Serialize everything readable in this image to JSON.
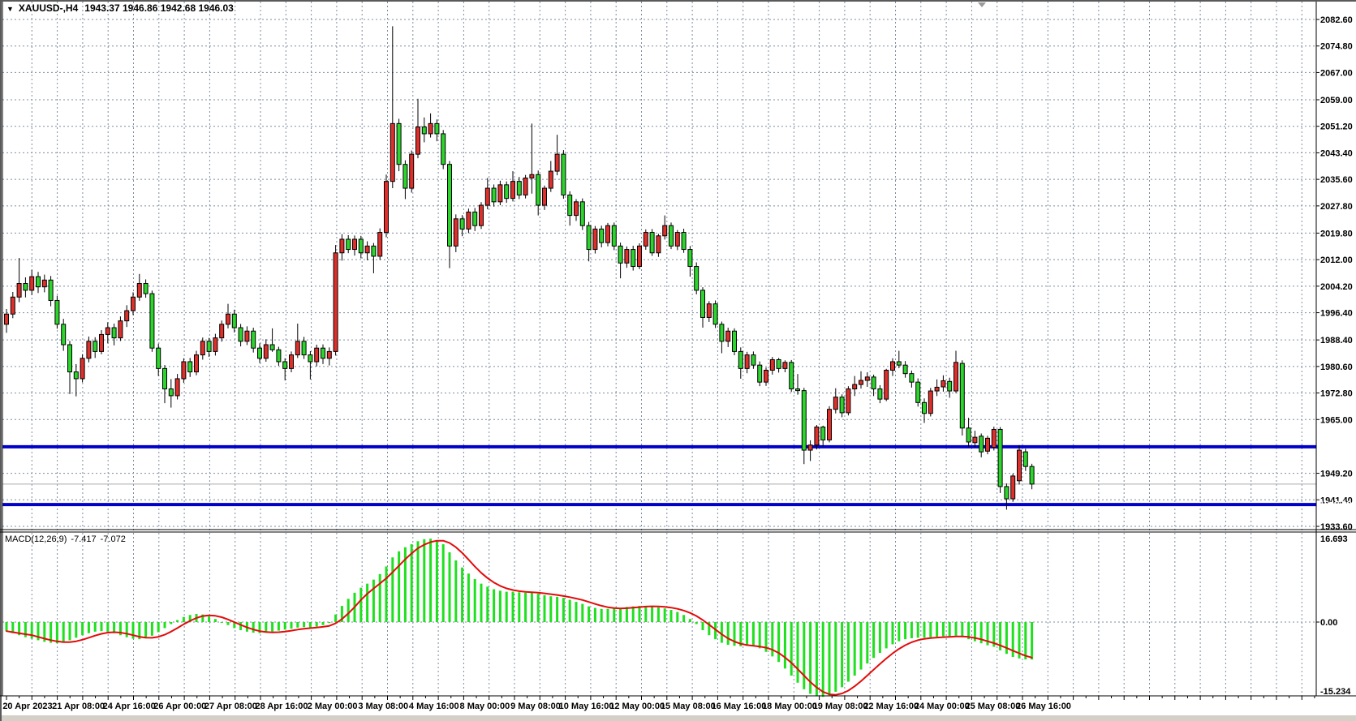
{
  "header": {
    "expander_icon": "▼",
    "symbol_period": "XAUUSD-,H4",
    "quote": {
      "open": "1943.37",
      "high": "1946.86",
      "low": "1942.68",
      "close": "1946.03"
    }
  },
  "colors": {
    "background": "#FFFFFF",
    "chrome": "#D4D0C8",
    "grid": "#7E8CA0",
    "bull_candle": "#DF2F2B",
    "bear_candle": "#2BD52B",
    "candle_outline": "#000000",
    "level_line_blue": "#0000C8",
    "current_price_line": "#AAAAAA",
    "current_price_badge_bg": "#000000",
    "macd_histogram": "#1FE01F",
    "macd_signal": "#E30B0B",
    "axis_text": "#000000"
  },
  "chart_data": {
    "type": "candlestick",
    "symbol": "XAUUSD-",
    "timeframe": "H4",
    "indicator": "MACD",
    "price_axis": {
      "ticks": [
        "2082.60",
        "2074.80",
        "2067.00",
        "2059.00",
        "2051.20",
        "2043.40",
        "2035.60",
        "2027.80",
        "2019.80",
        "2012.00",
        "2004.20",
        "1996.40",
        "1988.40",
        "1980.60",
        "1972.80",
        "1965.00",
        "1949.20",
        "1941.40",
        "1933.60"
      ]
    },
    "time_axis": {
      "labels": [
        "20 Apr 2023",
        "21 Apr 08:00",
        "24 Apr 16:00",
        "26 Apr 00:00",
        "27 Apr 08:00",
        "28 Apr 16:00",
        "2 May 00:00",
        "3 May 08:00",
        "4 May 16:00",
        "8 May 00:00",
        "9 May 08:00",
        "10 May 16:00",
        "12 May 00:00",
        "15 May 08:00",
        "16 May 16:00",
        "18 May 00:00",
        "19 May 08:00",
        "22 May 16:00",
        "24 May 00:00",
        "25 May 08:00",
        "26 May 16:00"
      ]
    },
    "horizontal_lines": [
      {
        "label": "1957.00",
        "value": 1957.0,
        "color": "#0000C8"
      },
      {
        "label": "1940.00",
        "value": 1940.0,
        "color": "#0000C8"
      }
    ],
    "current_price": {
      "label": "1946.03",
      "value": 1946.03
    },
    "candles": [
      [
        1993,
        1997.5,
        1990.5,
        1996
      ],
      [
        1996,
        2002.5,
        1994.8,
        2001
      ],
      [
        2001,
        2012.5,
        1999.5,
        2005
      ],
      [
        2005,
        2006.8,
        2000.9,
        2003
      ],
      [
        2003,
        2009,
        2001.6,
        2007
      ],
      [
        2007,
        2008.4,
        2002.2,
        2004
      ],
      [
        2004,
        2007.6,
        2002.4,
        2006
      ],
      [
        2006,
        2007.2,
        1998.3,
        2000
      ],
      [
        2000,
        2001.4,
        1991.7,
        1993
      ],
      [
        1993,
        1994.6,
        1985.2,
        1987
      ],
      [
        1987,
        1988.1,
        1972.5,
        1979
      ],
      [
        1979,
        1981.3,
        1971.8,
        1977
      ],
      [
        1977,
        1984.2,
        1975.9,
        1983
      ],
      [
        1983,
        1989.4,
        1981.8,
        1988
      ],
      [
        1988,
        1989.2,
        1983.1,
        1985
      ],
      [
        1985,
        1991.3,
        1984.2,
        1990
      ],
      [
        1990,
        1993.6,
        1987.4,
        1992
      ],
      [
        1992,
        1993.2,
        1986.8,
        1989
      ],
      [
        1989,
        1995.3,
        1988.1,
        1994
      ],
      [
        1994,
        1998.6,
        1992.2,
        1997
      ],
      [
        1997,
        2002.4,
        1995.7,
        2001
      ],
      [
        2001,
        2007.8,
        1999.9,
        2005
      ],
      [
        2005,
        2006.2,
        2000.8,
        2002
      ],
      [
        2002,
        2002.9,
        1984.9,
        1986
      ],
      [
        1986,
        1987.3,
        1977.8,
        1980
      ],
      [
        1980,
        1981,
        1969.8,
        1974
      ],
      [
        1974,
        1976.9,
        1968.5,
        1972
      ],
      [
        1972,
        1978.4,
        1970.9,
        1977
      ],
      [
        1977,
        1983,
        1975.8,
        1982
      ],
      [
        1982,
        1983.1,
        1977.5,
        1979
      ],
      [
        1979,
        1985.2,
        1978,
        1984
      ],
      [
        1984,
        1989.1,
        1982.6,
        1988
      ],
      [
        1988,
        1989,
        1983.4,
        1985
      ],
      [
        1985,
        1990.2,
        1983.8,
        1989
      ],
      [
        1989,
        1994.1,
        1987.9,
        1993
      ],
      [
        1993,
        1999,
        1991.8,
        1996
      ],
      [
        1996,
        1997.3,
        1990.6,
        1992
      ],
      [
        1992,
        1993.1,
        1986.5,
        1988
      ],
      [
        1988,
        1992.4,
        1986.9,
        1991
      ],
      [
        1991,
        1992,
        1984.7,
        1986
      ],
      [
        1986,
        1987.4,
        1981.6,
        1983
      ],
      [
        1983,
        1988.6,
        1982,
        1987
      ],
      [
        1987,
        1991.8,
        1984.9,
        1985.5
      ],
      [
        1985.5,
        1986.4,
        1980.8,
        1982
      ],
      [
        1982,
        1983,
        1976.5,
        1980
      ],
      [
        1980,
        1985,
        1978.9,
        1984
      ],
      [
        1984,
        1993.2,
        1983.1,
        1988
      ],
      [
        1988,
        1989.3,
        1982.8,
        1984
      ],
      [
        1984,
        1985.1,
        1976.8,
        1982
      ],
      [
        1982,
        1987,
        1980.6,
        1986
      ],
      [
        1986,
        1987.1,
        1981.3,
        1983
      ],
      [
        1983,
        1986.2,
        1980.9,
        1985
      ],
      [
        1985,
        2016.3,
        1983.8,
        2014
      ],
      [
        2014,
        2019.5,
        2011.7,
        2018
      ],
      [
        2018,
        2019.2,
        2013.9,
        2015
      ],
      [
        2015,
        2019.1,
        2013.2,
        2018
      ],
      [
        2018,
        2019,
        2012.4,
        2014
      ],
      [
        2014,
        2017.4,
        2011.8,
        2016
      ],
      [
        2016,
        2016.9,
        2008,
        2013
      ],
      [
        2013,
        2021.2,
        2011.9,
        2020
      ],
      [
        2020,
        2037,
        2018.6,
        2035
      ],
      [
        2035,
        2080.6,
        2033,
        2052
      ],
      [
        2052,
        2053.4,
        2038,
        2040
      ],
      [
        2040,
        2041.2,
        2029.8,
        2033
      ],
      [
        2033,
        2044.1,
        2031.7,
        2043
      ],
      [
        2043,
        2059.3,
        2041.8,
        2051
      ],
      [
        2051,
        2053.8,
        2046.5,
        2049
      ],
      [
        2049,
        2055,
        2047.9,
        2052
      ],
      [
        2052,
        2053.2,
        2046.8,
        2049
      ],
      [
        2049,
        2050.1,
        2038.6,
        2040
      ],
      [
        2040,
        2041,
        2009.5,
        2016
      ],
      [
        2016,
        2025.3,
        2014.2,
        2024
      ],
      [
        2024,
        2025.1,
        2018.9,
        2021
      ],
      [
        2021,
        2027,
        2019.8,
        2026
      ],
      [
        2026,
        2027.2,
        2020.4,
        2022
      ],
      [
        2022,
        2028.9,
        2021,
        2028
      ],
      [
        2028,
        2036,
        2026.8,
        2033
      ],
      [
        2033,
        2034.1,
        2027.6,
        2029
      ],
      [
        2029,
        2035.2,
        2028,
        2034
      ],
      [
        2034,
        2035,
        2028.7,
        2030
      ],
      [
        2030,
        2038,
        2029.1,
        2035
      ],
      [
        2035,
        2036.3,
        2029.8,
        2031
      ],
      [
        2031,
        2036.9,
        2030,
        2036
      ],
      [
        2036,
        2052,
        2031.4,
        2037
      ],
      [
        2037,
        2038.2,
        2025,
        2028
      ],
      [
        2028,
        2033.8,
        2026.6,
        2033
      ],
      [
        2033,
        2041,
        2031.9,
        2038
      ],
      [
        2038,
        2048.7,
        2036.8,
        2043
      ],
      [
        2043,
        2044.2,
        2029.9,
        2031
      ],
      [
        2031,
        2032.1,
        2022,
        2025
      ],
      [
        2025,
        2029.8,
        2023.4,
        2029
      ],
      [
        2029,
        2030,
        2020.7,
        2022
      ],
      [
        2022,
        2023.1,
        2011.5,
        2015
      ],
      [
        2015,
        2021.9,
        2013.8,
        2021
      ],
      [
        2021,
        2022,
        2015.6,
        2017
      ],
      [
        2017,
        2022.8,
        2015.9,
        2022
      ],
      [
        2022,
        2022.9,
        2014.8,
        2016
      ],
      [
        2016,
        2017,
        2006.5,
        2011
      ],
      [
        2011,
        2015.9,
        2009.6,
        2015
      ],
      [
        2015,
        2016.1,
        2008.8,
        2010
      ],
      [
        2010,
        2016.8,
        2009.2,
        2016
      ],
      [
        2016,
        2020.9,
        2014.9,
        2020
      ],
      [
        2020,
        2021,
        2013.1,
        2014
      ],
      [
        2014,
        2019.6,
        2012.8,
        2019
      ],
      [
        2019,
        2025,
        2017.9,
        2022
      ],
      [
        2022,
        2022.9,
        2015.1,
        2016
      ],
      [
        2016,
        2020.7,
        2014.8,
        2020
      ],
      [
        2020,
        2021.1,
        2014,
        2015
      ],
      [
        2015,
        2016,
        2007,
        2010
      ],
      [
        2010,
        2011.2,
        2001.8,
        2003
      ],
      [
        2003,
        2003.9,
        1992,
        1995
      ],
      [
        1995,
        1999.8,
        1993.7,
        1999
      ],
      [
        1999,
        2000,
        1991.9,
        1993
      ],
      [
        1993,
        1993.8,
        1984.5,
        1988
      ],
      [
        1988,
        1992,
        1986.3,
        1991
      ],
      [
        1991,
        1991.8,
        1983.9,
        1985
      ],
      [
        1985,
        1986.2,
        1977,
        1980
      ],
      [
        1980,
        1984.9,
        1978.6,
        1984
      ],
      [
        1984,
        1985,
        1979.9,
        1981
      ],
      [
        1981,
        1982.1,
        1974.8,
        1976
      ],
      [
        1976,
        1980.3,
        1974.9,
        1979.5
      ],
      [
        1979.5,
        1983.4,
        1978.2,
        1982.6
      ],
      [
        1982.6,
        1983.1,
        1978.8,
        1980
      ],
      [
        1980,
        1982.4,
        1978.9,
        1981.8
      ],
      [
        1981.8,
        1982.5,
        1973.1,
        1974
      ],
      [
        1974,
        1978.4,
        1972.3,
        1973.5
      ],
      [
        1973.5,
        1974.3,
        1951.9,
        1956
      ],
      [
        1956,
        1958.9,
        1952.8,
        1957.5
      ],
      [
        1957.5,
        1963.4,
        1956.2,
        1962.8
      ],
      [
        1962.8,
        1963.2,
        1957.1,
        1959
      ],
      [
        1959,
        1968.9,
        1958.3,
        1968
      ],
      [
        1968,
        1974.2,
        1966.8,
        1971.6
      ],
      [
        1971.6,
        1972.4,
        1965.7,
        1967
      ],
      [
        1967,
        1974.8,
        1966.2,
        1974
      ],
      [
        1974,
        1977.8,
        1971.9,
        1975.3
      ],
      [
        1975.3,
        1979.2,
        1974.1,
        1976.5
      ],
      [
        1976.5,
        1978.9,
        1974.6,
        1977.5
      ],
      [
        1977.5,
        1978.2,
        1971.9,
        1974
      ],
      [
        1974,
        1975.1,
        1969.8,
        1971
      ],
      [
        1971,
        1979.9,
        1970.4,
        1979.5
      ],
      [
        1979.5,
        1983,
        1977.8,
        1982
      ],
      [
        1982,
        1985.2,
        1980.1,
        1981
      ],
      [
        1981,
        1982.2,
        1977.3,
        1978.5
      ],
      [
        1978.5,
        1979.4,
        1974.4,
        1976
      ],
      [
        1976,
        1977.1,
        1968.8,
        1970
      ],
      [
        1970,
        1971.2,
        1964,
        1966.8
      ],
      [
        1966.8,
        1974.3,
        1965.9,
        1973.4
      ],
      [
        1973.4,
        1976.8,
        1971.9,
        1974.5
      ],
      [
        1974.6,
        1978,
        1973.2,
        1976.4
      ],
      [
        1976.2,
        1977.3,
        1971.4,
        1973.4
      ],
      [
        1973.4,
        1985.2,
        1972.8,
        1981.8
      ],
      [
        1981.5,
        1982.4,
        1960.3,
        1962.5
      ],
      [
        1962.5,
        1965.5,
        1956.9,
        1958.4
      ],
      [
        1958.2,
        1961.7,
        1956.8,
        1959.8
      ],
      [
        1960.1,
        1960.9,
        1953.9,
        1955.5
      ],
      [
        1955.7,
        1960.2,
        1954.8,
        1959.5
      ],
      [
        1956.8,
        1962.9,
        1955.9,
        1962.1
      ],
      [
        1962.1,
        1962.8,
        1943.4,
        1945.3
      ],
      [
        1945.3,
        1946.2,
        1938.5,
        1941.7
      ],
      [
        1941.7,
        1949.1,
        1940.8,
        1948.4
      ],
      [
        1947,
        1957.5,
        1945.9,
        1956
      ],
      [
        1955.5,
        1956.4,
        1949.9,
        1951.2
      ],
      [
        1951.2,
        1952,
        1944.5,
        1946.03
      ]
    ],
    "macd": {
      "label": "MACD(12,26,9)",
      "main_value": "-7.417",
      "signal_value": "-7.072",
      "signal_period": 9,
      "axis": {
        "max": "16.693",
        "zero": "0.00",
        "min": "-15.234"
      },
      "histogram": [
        -1.8,
        -2.2,
        -2.6,
        -3.0,
        -3.3,
        -3.6,
        -3.9,
        -4.1,
        -4.2,
        -4.0,
        -3.6,
        -3.1,
        -2.6,
        -2.2,
        -1.9,
        -1.8,
        -1.9,
        -2.2,
        -2.6,
        -3.0,
        -3.3,
        -3.4,
        -3.2,
        -2.7,
        -2.0,
        -1.2,
        -0.4,
        0.4,
        1.0,
        1.4,
        1.6,
        1.5,
        1.1,
        0.6,
        0.0,
        -0.6,
        -1.2,
        -1.6,
        -1.9,
        -2.1,
        -2.2,
        -2.1,
        -1.9,
        -1.7,
        -1.5,
        -1.3,
        -1.1,
        -1.0,
        -1.1,
        -0.9,
        -0.6,
        -0.2,
        1.5,
        3.2,
        4.6,
        5.8,
        6.8,
        7.6,
        8.4,
        9.5,
        11.0,
        12.8,
        14.0,
        14.8,
        15.4,
        16.0,
        16.4,
        16.5,
        16.2,
        15.4,
        13.8,
        12.2,
        10.8,
        9.6,
        8.5,
        7.6,
        7.0,
        6.5,
        6.2,
        6.0,
        6.0,
        5.9,
        5.8,
        5.8,
        5.6,
        5.3,
        5.1,
        5.0,
        4.8,
        4.4,
        4.0,
        3.6,
        3.1,
        2.8,
        2.6,
        2.6,
        2.7,
        2.8,
        3.0,
        3.1,
        3.2,
        3.2,
        3.1,
        2.9,
        2.7,
        2.4,
        2.0,
        1.4,
        0.6,
        -0.4,
        -1.6,
        -2.6,
        -3.4,
        -4.1,
        -4.5,
        -4.7,
        -4.8,
        -4.7,
        -4.8,
        -5.2,
        -5.9,
        -6.8,
        -7.9,
        -9.2,
        -10.6,
        -12.0,
        -13.3,
        -14.2,
        -14.7,
        -14.8,
        -14.5,
        -13.8,
        -12.9,
        -11.8,
        -10.6,
        -9.4,
        -8.2,
        -7.1,
        -6.1,
        -5.2,
        -4.4,
        -3.8,
        -3.4,
        -3.2,
        -3.1,
        -3.1,
        -3.0,
        -2.9,
        -2.8,
        -2.8,
        -2.7,
        -3.0,
        -3.4,
        -3.8,
        -4.2,
        -4.6,
        -4.9,
        -5.6,
        -6.3,
        -6.9,
        -7.2,
        -7.4,
        -7.417
      ]
    }
  }
}
